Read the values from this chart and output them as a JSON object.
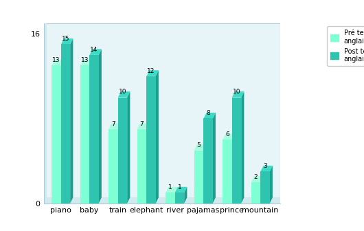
{
  "categories": [
    "piano",
    "baby",
    "train",
    "elephant",
    "river",
    "pajamas",
    "prince",
    "mountain"
  ],
  "pre_test": [
    13,
    13,
    7,
    7,
    1,
    5,
    6,
    2
  ],
  "post_test": [
    15,
    14,
    10,
    12,
    1,
    8,
    10,
    3
  ],
  "pre_color": "#7fffd4",
  "post_color": "#2ec4b0",
  "pre_side_color": "#55d4b0",
  "post_side_color": "#1a9e8e",
  "pre_top_color": "#aafae0",
  "post_top_color": "#3ddbc5",
  "ylim": [
    0,
    17
  ],
  "ytick_vals": [
    0,
    16
  ],
  "legend_pre": "Pré test\nanglais",
  "legend_post": "Post test\nanglais",
  "bg_outer": "#ffffff",
  "bg_inner": "#e8f5f8",
  "box_wall_color": "#d0eaf0",
  "box_border_color": "#aaccd8"
}
